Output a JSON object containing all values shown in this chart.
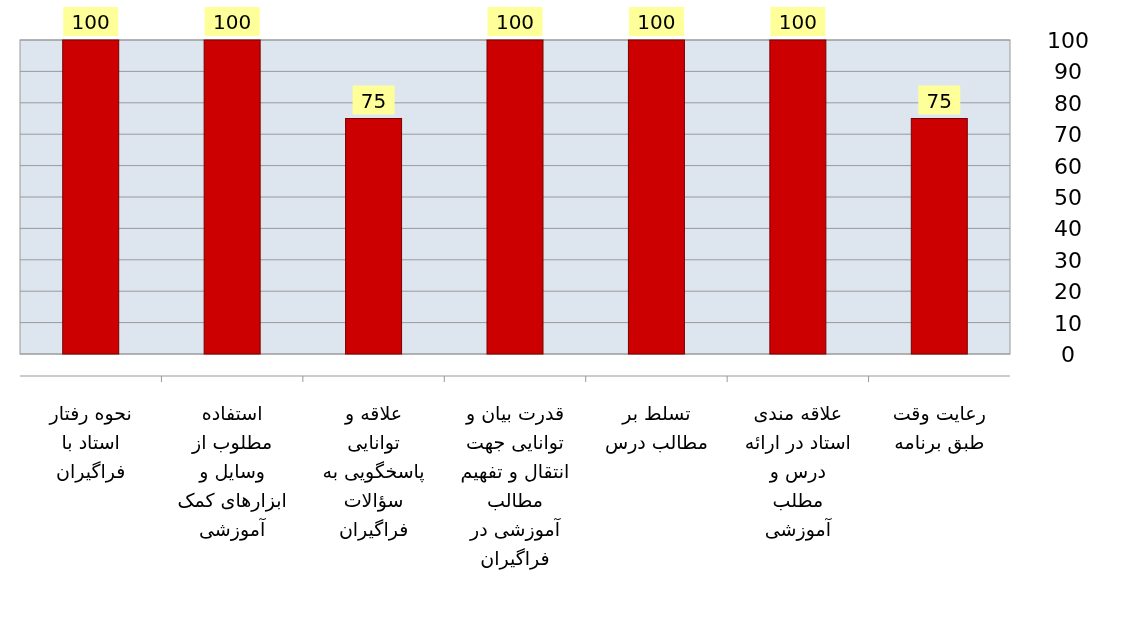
{
  "chart_data": {
    "type": "bar",
    "categories": [
      "نحوه رفتار استاد با فراگیران",
      "استفاده مطلوب از وسایل و ابزارهای کمک آموزشی",
      "علاقه و توانایی پاسخگویی به سؤالات فراگیران",
      "قدرت بیان و توانایی جهت انتقال و تفهیم مطالب آموزشی در فراگیران",
      "تسلط بر مطالب درس",
      "علاقه مندی استاد در ارائه درس و مطلب آموزشی",
      "رعایت وقت طبق برنامه"
    ],
    "values": [
      100,
      100,
      75,
      100,
      100,
      100,
      75
    ],
    "color": "#cc0000",
    "ylim": [
      0,
      100
    ],
    "yticks": [
      0,
      10,
      20,
      30,
      40,
      50,
      60,
      70,
      80,
      90,
      100
    ],
    "grid": "y",
    "data_labels": true
  }
}
